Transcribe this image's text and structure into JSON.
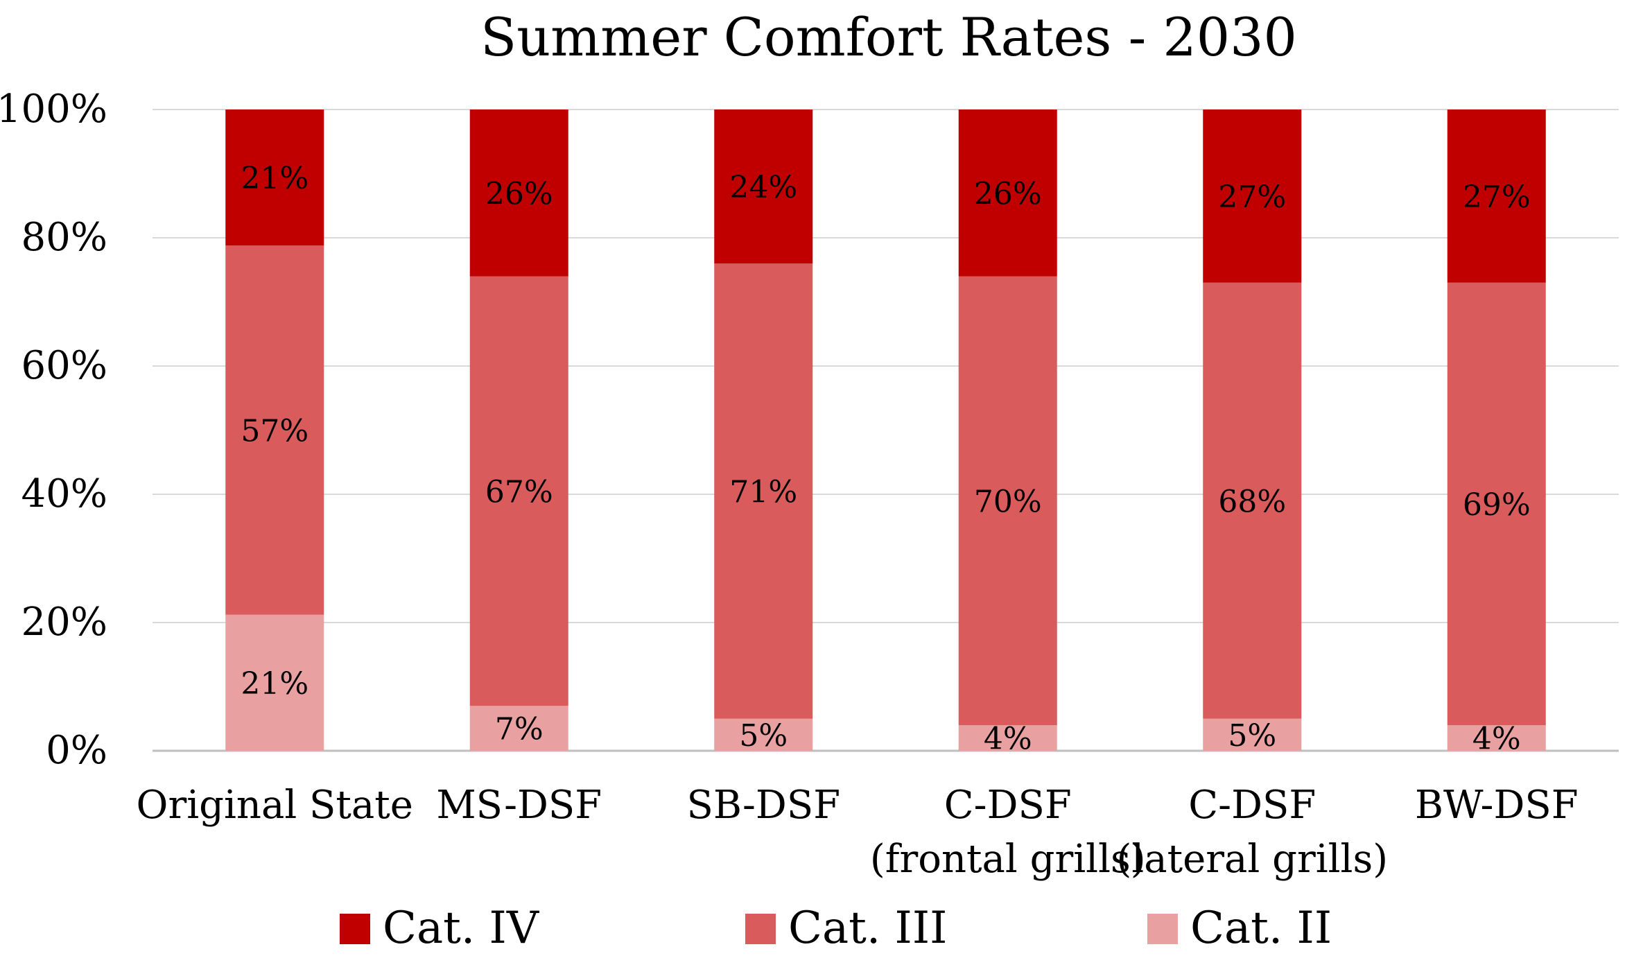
{
  "chart_data": {
    "type": "bar",
    "stacked": true,
    "percent_stacked": true,
    "title": "Summer Comfort Rates - 2030",
    "xlabel": "",
    "ylabel": "",
    "ylim": [
      0,
      100
    ],
    "y_ticks": [
      "0%",
      "20%",
      "40%",
      "60%",
      "80%",
      "100%"
    ],
    "grid": true,
    "legend_position": "bottom",
    "categories": [
      [
        "Original State"
      ],
      [
        "MS-DSF"
      ],
      [
        "SB-DSF"
      ],
      [
        "C-DSF",
        "(frontal grills)"
      ],
      [
        "C-DSF",
        "(lateral grills)"
      ],
      [
        "BW-DSF"
      ]
    ],
    "series": [
      {
        "name": "Cat. II",
        "color": "#e8a0a0",
        "values": [
          21,
          7,
          5,
          4,
          5,
          4
        ],
        "labels": [
          "21%",
          "7%",
          "5%",
          "4%",
          "5%",
          "4%"
        ]
      },
      {
        "name": "Cat. III",
        "color": "#d95b5b",
        "values": [
          57,
          67,
          71,
          70,
          68,
          69
        ],
        "labels": [
          "57%",
          "67%",
          "71%",
          "70%",
          "68%",
          "69%"
        ]
      },
      {
        "name": "Cat. IV",
        "color": "#c00000",
        "values": [
          21,
          26,
          24,
          26,
          27,
          27
        ],
        "labels": [
          "21%",
          "26%",
          "24%",
          "26%",
          "27%",
          "27%"
        ]
      }
    ],
    "legend_order": [
      "Cat. IV",
      "Cat. III",
      "Cat. II"
    ]
  }
}
